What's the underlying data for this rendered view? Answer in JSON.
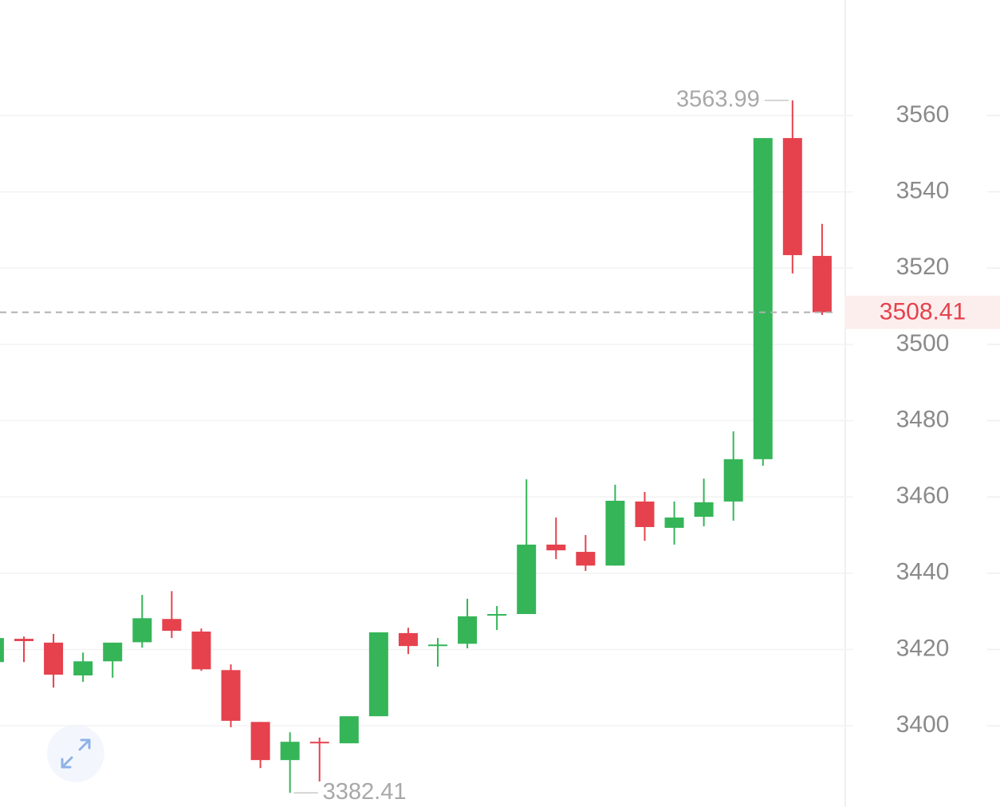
{
  "chart_data": {
    "type": "candlestick",
    "open": [
      3416.7,
      3422.8,
      3421.8,
      3413.2,
      3416.9,
      3421.9,
      3428.0,
      3424.7,
      3414.6,
      3401.0,
      3391.0,
      3395.8,
      3395.4,
      3402.5,
      3424.3,
      3420.9,
      3421.5,
      3428.9,
      3429.3,
      3447.5,
      3445.6,
      3442.0,
      3458.8,
      3451.9,
      3454.8,
      3458.8,
      3469.9,
      3554.1,
      3523.2
    ],
    "high": [
      3423.0,
      3423.4,
      3424.1,
      3419.2,
      3421.8,
      3434.3,
      3435.3,
      3425.5,
      3416.1,
      3401.0,
      3398.3,
      3396.9,
      3402.5,
      3424.5,
      3425.7,
      3423.0,
      3433.3,
      3431.4,
      3464.6,
      3454.6,
      3450.0,
      3463.2,
      3461.3,
      3458.8,
      3464.8,
      3477.2,
      3554.1,
      3563.99,
      3531.6
    ],
    "low": [
      3416.7,
      3416.7,
      3410.0,
      3411.5,
      3412.6,
      3420.5,
      3423.0,
      3414.4,
      3399.6,
      3388.9,
      3382.41,
      3385.4,
      3395.4,
      3402.5,
      3418.8,
      3415.5,
      3420.3,
      3425.1,
      3429.3,
      3443.7,
      3440.6,
      3442.0,
      3448.5,
      3447.5,
      3452.3,
      3453.8,
      3468.2,
      3518.6,
      3507.7
    ],
    "close": [
      3423.0,
      3422.2,
      3413.4,
      3416.9,
      3421.8,
      3428.2,
      3424.9,
      3414.8,
      3401.3,
      3391.0,
      3395.8,
      3395.4,
      3402.5,
      3424.5,
      3420.9,
      3421.3,
      3428.7,
      3429.3,
      3447.5,
      3446.0,
      3442.0,
      3459.0,
      3452.1,
      3454.6,
      3458.6,
      3469.9,
      3554.1,
      3523.4,
      3508.41
    ],
    "last_price": 3508.41,
    "up_color": "#35b558",
    "down_color": "#e5424d",
    "ylim": [
      3378.7,
      3590.3
    ],
    "yticks": [
      3400,
      3420,
      3440,
      3460,
      3480,
      3500,
      3520,
      3540,
      3560
    ],
    "grid": true
  }
}
